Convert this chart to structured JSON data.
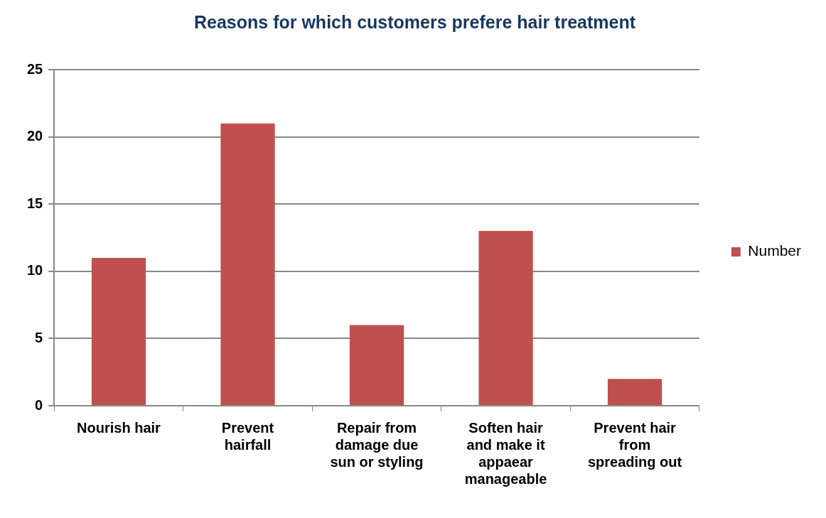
{
  "chart_data": {
    "type": "bar",
    "title": "Reasons for which customers prefere hair treatment",
    "categories": [
      "Nourish hair",
      "Prevent hairfall",
      "Repair from damage due sun or styling",
      "Soften hair and make it appaear manageable",
      "Prevent hair from spreading out"
    ],
    "series": [
      {
        "name": "Number",
        "color": "#c0504d",
        "values": [
          11,
          21,
          6,
          13,
          2
        ]
      }
    ],
    "ylim": [
      0,
      25
    ],
    "yticks": [
      0,
      5,
      10,
      15,
      20,
      25
    ],
    "grid": "y",
    "legend": "right"
  }
}
